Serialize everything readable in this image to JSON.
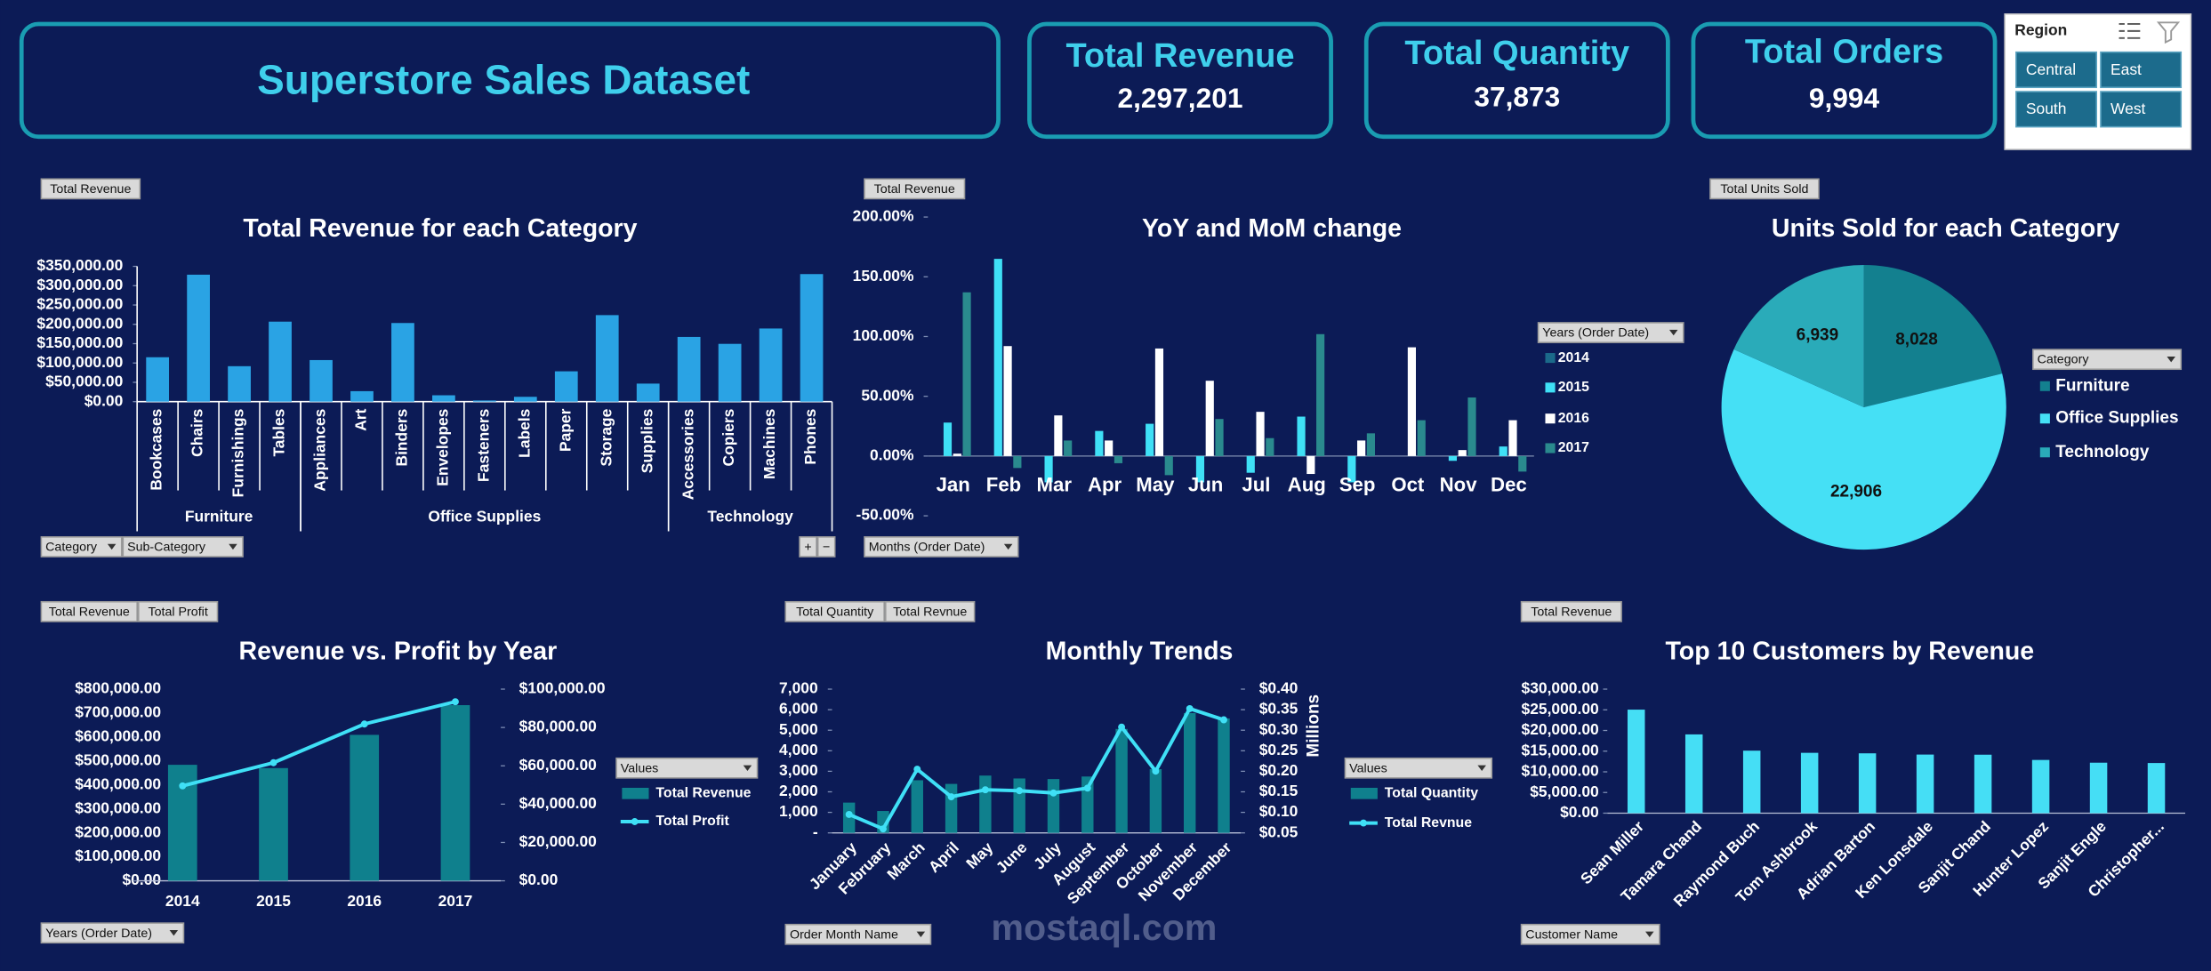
{
  "header": {
    "title": "Superstore Sales Dataset"
  },
  "kpis": [
    {
      "label": "Total Revenue",
      "value": "2,297,201"
    },
    {
      "label": "Total Quantity",
      "value": "37,873"
    },
    {
      "label": "Total Orders",
      "value": "9,994"
    }
  ],
  "slicer": {
    "title": "Region",
    "items": [
      "Central",
      "East",
      "South",
      "West"
    ]
  },
  "watermark": "mostaql.com",
  "chart_data": [
    {
      "type": "bar",
      "title": "Total Revenue for each Category",
      "color": "#2aa3e4",
      "groups": [
        {
          "name": "Furniture",
          "categories": [
            "Bookcases",
            "Chairs",
            "Furnishings",
            "Tables"
          ],
          "values": [
            114880,
            328449,
            91705,
            206966
          ]
        },
        {
          "name": "Office Supplies",
          "categories": [
            "Appliances",
            "Art",
            "Binders",
            "Envelopes",
            "Fasteners",
            "Labels",
            "Paper",
            "Storage",
            "Supplies"
          ],
          "values": [
            107532,
            27119,
            203413,
            16476,
            3024,
            12486,
            78479,
            223844,
            46674
          ]
        },
        {
          "name": "Technology",
          "categories": [
            "Accessories",
            "Copiers",
            "Machines",
            "Phones"
          ],
          "values": [
            167380,
            149528,
            189239,
            330007
          ]
        }
      ],
      "ylim": [
        0,
        350000
      ],
      "yticks": [
        {
          "value": 0,
          "label": "$0.00"
        },
        {
          "value": 50000,
          "label": "$50,000.00"
        },
        {
          "value": 100000,
          "label": "$100,000.00"
        },
        {
          "value": 150000,
          "label": "$150,000.00"
        },
        {
          "value": 200000,
          "label": "$200,000.00"
        },
        {
          "value": 250000,
          "label": "$250,000.00"
        },
        {
          "value": 300000,
          "label": "$300,000.00"
        },
        {
          "value": 350000,
          "label": "$350,000.00"
        }
      ],
      "fields": [
        "Total Revenue"
      ],
      "axis_fields": [
        "Category",
        "Sub-Category"
      ],
      "buttons": [
        "+",
        "−"
      ]
    },
    {
      "type": "bar",
      "title": "YoY and MoM change",
      "categories": [
        "Jan",
        "Feb",
        "Mar",
        "Apr",
        "May",
        "Jun",
        "Jul",
        "Aug",
        "Sep",
        "Oct",
        "Nov",
        "Dec"
      ],
      "series": [
        {
          "name": "2014",
          "color": "#1b6a8a",
          "values": [
            null,
            null,
            null,
            null,
            null,
            null,
            null,
            null,
            null,
            null,
            null,
            null
          ]
        },
        {
          "name": "2015",
          "color": "#3fe0f6",
          "values": [
            28,
            165,
            -22,
            21,
            27,
            -22,
            -14,
            33,
            -22,
            0,
            -4,
            8
          ]
        },
        {
          "name": "2016",
          "color": "#ffffff",
          "values": [
            2,
            92,
            34,
            13,
            90,
            63,
            37,
            -15,
            13,
            91,
            5,
            30
          ]
        },
        {
          "name": "2017",
          "color": "#2a8a8e",
          "values": [
            137,
            -10,
            13,
            -6,
            -16,
            31,
            15,
            102,
            19,
            30,
            49,
            -13
          ]
        }
      ],
      "ylim": [
        -50,
        200
      ],
      "yticks": [
        {
          "value": -50,
          "label": "-50.00%"
        },
        {
          "value": 0,
          "label": "0.00%"
        },
        {
          "value": 50,
          "label": "50.00%"
        },
        {
          "value": 100,
          "label": "100.00%"
        },
        {
          "value": 150,
          "label": "150.00%"
        },
        {
          "value": 200,
          "label": "200.00%"
        }
      ],
      "legend_title": "Years (Order Date)",
      "fields": [
        "Total Revenue"
      ],
      "axis_fields": [
        "Months (Order Date)"
      ]
    },
    {
      "type": "pie",
      "title": "Units Sold for each Category",
      "categories": [
        "Furniture",
        "Office Supplies",
        "Technology"
      ],
      "values": [
        8028,
        22906,
        6939
      ],
      "value_labels": [
        "8,028",
        "22,906",
        "6,939"
      ],
      "colors": [
        "#13808f",
        "#45e0f5",
        "#2aabb9"
      ],
      "legend_title": "Category",
      "fields": [
        "Total Units Sold"
      ]
    },
    {
      "type": "combo",
      "title": "Revenue vs. Profit by Year",
      "categories": [
        "2014",
        "2015",
        "2016",
        "2017"
      ],
      "series": [
        {
          "name": "Total Revenue",
          "type": "bar",
          "color": "#0f808d",
          "values": [
            484247,
            470533,
            609206,
            733215
          ]
        },
        {
          "name": "Total Profit",
          "type": "line",
          "axis": "y2",
          "color": "#3fe0f6",
          "values": [
            49544,
            61619,
            81795,
            93439
          ]
        }
      ],
      "ylim": [
        0,
        800000
      ],
      "yticks": [
        {
          "value": 0,
          "label": "$0.00"
        },
        {
          "value": 100000,
          "label": "$100,000.00"
        },
        {
          "value": 200000,
          "label": "$200,000.00"
        },
        {
          "value": 300000,
          "label": "$300,000.00"
        },
        {
          "value": 400000,
          "label": "$400,000.00"
        },
        {
          "value": 500000,
          "label": "$500,000.00"
        },
        {
          "value": 600000,
          "label": "$600,000.00"
        },
        {
          "value": 700000,
          "label": "$700,000.00"
        },
        {
          "value": 800000,
          "label": "$800,000.00"
        }
      ],
      "y2lim": [
        0,
        100000
      ],
      "y2ticks": [
        {
          "value": 0,
          "label": "$0.00"
        },
        {
          "value": 20000,
          "label": "$20,000.00"
        },
        {
          "value": 40000,
          "label": "$40,000.00"
        },
        {
          "value": 60000,
          "label": "$60,000.00"
        },
        {
          "value": 80000,
          "label": "$80,000.00"
        },
        {
          "value": 100000,
          "label": "$100,000.00"
        }
      ],
      "legend_title": "Values",
      "fields": [
        "Total Revenue",
        "Total Profit"
      ],
      "axis_fields": [
        "Years (Order Date)"
      ]
    },
    {
      "type": "combo",
      "title": "Monthly Trends",
      "categories": [
        "January",
        "February",
        "March",
        "April",
        "May",
        "June",
        "July",
        "August",
        "September",
        "October",
        "November",
        "December"
      ],
      "series": [
        {
          "name": "Total Quantity",
          "type": "bar",
          "color": "#0f808d",
          "values": [
            1475,
            1067,
            2564,
            2385,
            2791,
            2650,
            2622,
            2745,
            5062,
            3104,
            5835,
            5573
          ]
        },
        {
          "name": "Total Revnue",
          "type": "line",
          "axis": "y2",
          "color": "#3fe0f6",
          "values": [
            0.0949,
            0.0598,
            0.205,
            0.1378,
            0.155,
            0.1527,
            0.1472,
            0.159,
            0.3077,
            0.2003,
            0.3525,
            0.3253
          ]
        }
      ],
      "ylim": [
        0,
        7000
      ],
      "yticks": [
        {
          "value": 0,
          "label": "-"
        },
        {
          "value": 1000,
          "label": "1,000"
        },
        {
          "value": 2000,
          "label": "2,000"
        },
        {
          "value": 3000,
          "label": "3,000"
        },
        {
          "value": 4000,
          "label": "4,000"
        },
        {
          "value": 5000,
          "label": "5,000"
        },
        {
          "value": 6000,
          "label": "6,000"
        },
        {
          "value": 7000,
          "label": "7,000"
        }
      ],
      "y2lim": [
        0.05,
        0.4
      ],
      "y2ticks": [
        {
          "value": 0.05,
          "label": "$0.05"
        },
        {
          "value": 0.1,
          "label": "$0.10"
        },
        {
          "value": 0.15,
          "label": "$0.15"
        },
        {
          "value": 0.2,
          "label": "$0.20"
        },
        {
          "value": 0.25,
          "label": "$0.25"
        },
        {
          "value": 0.3,
          "label": "$0.30"
        },
        {
          "value": 0.35,
          "label": "$0.35"
        },
        {
          "value": 0.4,
          "label": "$0.40"
        }
      ],
      "y2_title": "Millions",
      "legend_title": "Values",
      "fields": [
        "Total Quantity",
        "Total Revnue"
      ],
      "axis_fields": [
        "Order Month Name"
      ]
    },
    {
      "type": "bar",
      "title": "Top 10 Customers by Revenue",
      "color": "#45def5",
      "categories": [
        "Sean Miller",
        "Tamara Chand",
        "Raymond Buch",
        "Tom Ashbrook",
        "Adrian Barton",
        "Ken Lonsdale",
        "Sanjit Chand",
        "Hunter Lopez",
        "Sanjit Engle",
        "Christopher..."
      ],
      "values": [
        25043,
        19052,
        15117,
        14596,
        14474,
        14175,
        14142,
        12873,
        12209,
        12129
      ],
      "ylim": [
        0,
        30000
      ],
      "yticks": [
        {
          "value": 0,
          "label": "$0.00"
        },
        {
          "value": 5000,
          "label": "$5,000.00"
        },
        {
          "value": 10000,
          "label": "$10,000.00"
        },
        {
          "value": 15000,
          "label": "$15,000.00"
        },
        {
          "value": 20000,
          "label": "$20,000.00"
        },
        {
          "value": 25000,
          "label": "$25,000.00"
        },
        {
          "value": 30000,
          "label": "$30,000.00"
        }
      ],
      "fields": [
        "Total Revenue"
      ],
      "axis_fields": [
        "Customer Name"
      ]
    }
  ]
}
